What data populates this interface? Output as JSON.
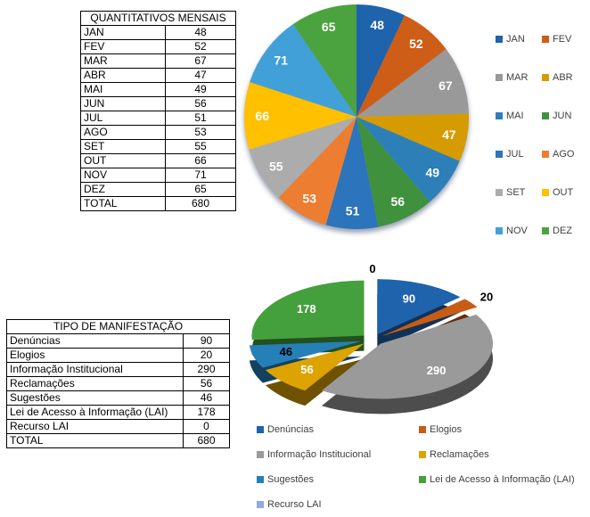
{
  "page": {
    "background": "#ffffff",
    "text_color": "#000000",
    "legend_text_color": "#404040"
  },
  "monthly_table": {
    "title": "QUANTITATIVOS MENSAIS",
    "rows": [
      [
        "JAN",
        "48"
      ],
      [
        "FEV",
        "52"
      ],
      [
        "MAR",
        "67"
      ],
      [
        "ABR",
        "47"
      ],
      [
        "MAI",
        "49"
      ],
      [
        "JUN",
        "56"
      ],
      [
        "JUL",
        "51"
      ],
      [
        "AGO",
        "53"
      ],
      [
        "SET",
        "55"
      ],
      [
        "OUT",
        "66"
      ],
      [
        "NOV",
        "71"
      ],
      [
        "DEZ",
        "65"
      ],
      [
        "TOTAL",
        "680"
      ]
    ]
  },
  "manifestation_table": {
    "title": "TIPO DE MANIFESTAÇÃO",
    "rows": [
      [
        "Denúncias",
        "90"
      ],
      [
        "Elogios",
        "20"
      ],
      [
        "Informação Institucional",
        "290"
      ],
      [
        "Reclamações",
        "56"
      ],
      [
        "Sugestões",
        "46"
      ],
      [
        "Lei de Acesso à Informação (LAI)",
        "178"
      ],
      [
        "Recurso LAI",
        "0"
      ],
      [
        "TOTAL",
        "680"
      ]
    ]
  },
  "chart_data": [
    {
      "type": "pie",
      "style": "flat-with-shadow",
      "categories": [
        "JAN",
        "FEV",
        "MAR",
        "ABR",
        "MAI",
        "JUN",
        "JUL",
        "AGO",
        "SET",
        "OUT",
        "NOV",
        "DEZ"
      ],
      "values": [
        48,
        52,
        67,
        47,
        49,
        56,
        51,
        53,
        55,
        66,
        71,
        65
      ],
      "total": 680,
      "colors": [
        "#1F63AC",
        "#CE5D17",
        "#999999",
        "#D69B00",
        "#2D7FB8",
        "#3F913D",
        "#2C74BC",
        "#ED7D31",
        "#ACACAC",
        "#FFC000",
        "#41A0D8",
        "#4BA33F"
      ],
      "data_labels": "values",
      "label_colors": [
        "#FFFFFF",
        "#FFFFFF",
        "#FFFFFF",
        "#FFFFFF",
        "#FFFFFF",
        "#FFFFFF",
        "#FFFFFF",
        "#FFFFFF",
        "#FFFFFF",
        "#FFFFFF",
        "#FFFFFF",
        "#FFFFFF"
      ],
      "start_angle_deg": 0,
      "direction": "clockwise",
      "legend_position": "right",
      "legend_columns": 2
    },
    {
      "type": "pie",
      "style": "3d-exploded",
      "categories": [
        "Denúncias",
        "Elogios",
        "Informação Institucional",
        "Reclamações",
        "Sugestões",
        "Lei de Acesso à Informação (LAI)",
        "Recurso LAI"
      ],
      "values": [
        90,
        20,
        290,
        56,
        46,
        178,
        0
      ],
      "total": 680,
      "colors": [
        "#1F63AC",
        "#C85C15",
        "#9A9A9A",
        "#DCA302",
        "#2580B8",
        "#44A03C",
        "#8FAADC"
      ],
      "data_labels": "values",
      "label_colors": [
        "#FFFFFF",
        "#000000",
        "#FFFFFF",
        "#FFFFFF",
        "#000000",
        "#FFFFFF",
        "#000000"
      ],
      "start_angle_deg": 0,
      "direction": "clockwise",
      "legend_position": "bottom",
      "legend_columns": 2
    }
  ]
}
